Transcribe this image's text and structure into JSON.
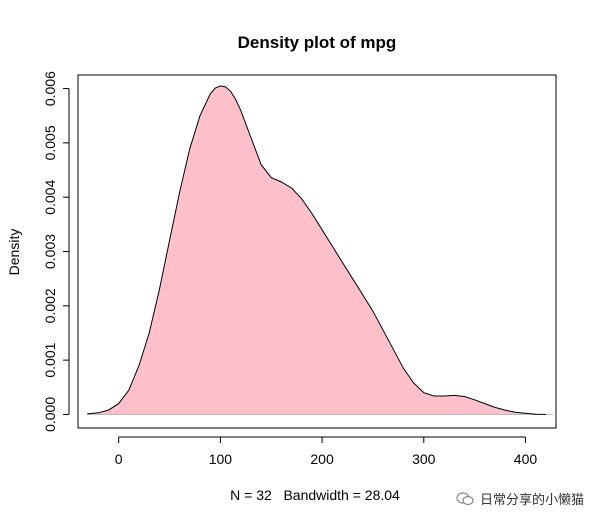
{
  "chart_data": {
    "type": "area",
    "title": "Density plot of mpg",
    "xlabel": "N = 32   Bandwidth = 28.04",
    "ylabel": "Density",
    "xlim": [
      -40,
      430
    ],
    "ylim": [
      -0.00025,
      0.00625
    ],
    "x_ticks": [
      0,
      100,
      200,
      300,
      400
    ],
    "y_ticks": [
      0.0,
      0.001,
      0.002,
      0.003,
      0.004,
      0.005,
      0.006
    ],
    "y_tick_labels": [
      "0.000",
      "0.001",
      "0.002",
      "0.003",
      "0.004",
      "0.005",
      "0.006"
    ],
    "fill_color": "#ffc0cb",
    "line_color": "#000000",
    "baseline_color": "#b3b3b3",
    "grid": false,
    "series": [
      {
        "x": [
          -31,
          -20,
          -10,
          0,
          10,
          20,
          30,
          40,
          50,
          60,
          70,
          80,
          90,
          95,
          100,
          105,
          110,
          115,
          120,
          130,
          140,
          150,
          160,
          170,
          180,
          190,
          200,
          210,
          220,
          230,
          240,
          250,
          260,
          270,
          280,
          290,
          300,
          310,
          320,
          330,
          340,
          350,
          360,
          370,
          380,
          390,
          400,
          410,
          420
        ],
        "y": [
          1e-05,
          3e-05,
          8e-05,
          0.0002,
          0.00045,
          0.0009,
          0.0015,
          0.0023,
          0.0032,
          0.0041,
          0.0049,
          0.0055,
          0.0059,
          0.00601,
          0.00605,
          0.00603,
          0.00595,
          0.0058,
          0.0056,
          0.0051,
          0.0046,
          0.00436,
          0.00428,
          0.00417,
          0.00397,
          0.0037,
          0.0034,
          0.0031,
          0.0028,
          0.0025,
          0.0022,
          0.0019,
          0.00155,
          0.0012,
          0.00085,
          0.00058,
          0.0004,
          0.00034,
          0.00034,
          0.00035,
          0.00033,
          0.00027,
          0.0002,
          0.00013,
          8e-05,
          4e-05,
          2e-05,
          5e-06,
          1e-06
        ]
      }
    ]
  },
  "watermark": {
    "text": "日常分享的小懒猫",
    "icon": "wechat-bubble-icon"
  }
}
